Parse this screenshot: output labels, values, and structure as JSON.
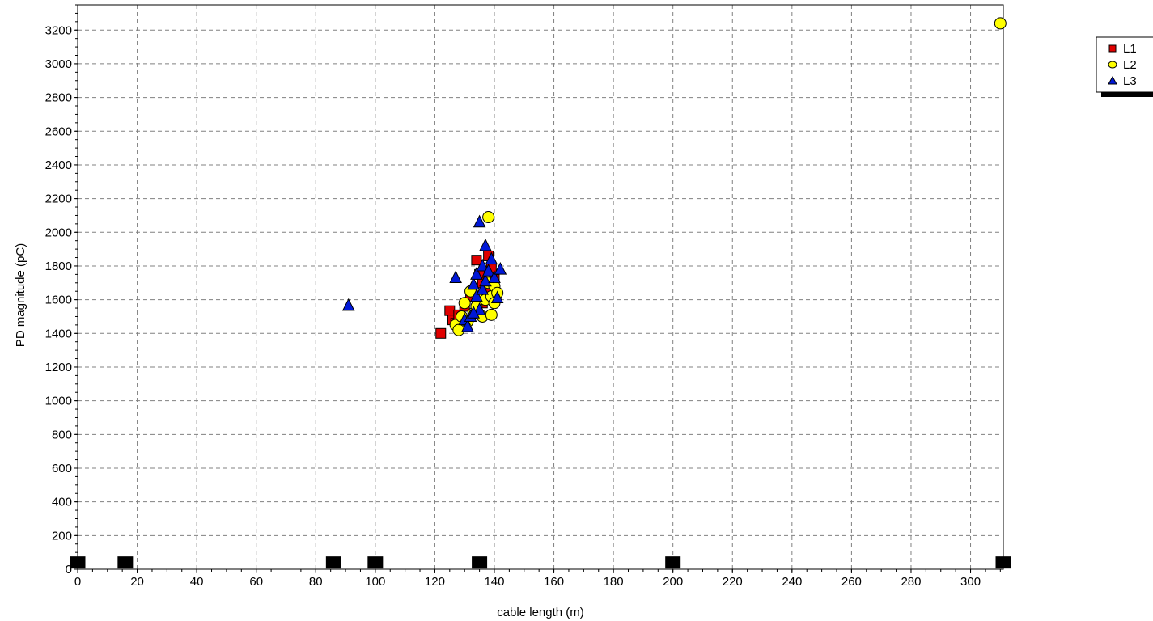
{
  "chart_data": {
    "type": "scatter",
    "xlabel": "cable length (m)",
    "ylabel": "PD magnitude (pC)",
    "xlim": [
      0,
      311
    ],
    "ylim": [
      0,
      3350
    ],
    "x_ticks": [
      0,
      20,
      40,
      60,
      80,
      100,
      120,
      140,
      160,
      180,
      200,
      220,
      240,
      260,
      280,
      300
    ],
    "y_ticks": [
      0,
      200,
      400,
      600,
      800,
      1000,
      1200,
      1400,
      1600,
      1800,
      2000,
      2200,
      2400,
      2600,
      2800,
      3000,
      3200
    ],
    "grid": true,
    "legend_position": "top-right",
    "series": [
      {
        "name": "L1",
        "marker": "square",
        "color": "#e00000",
        "points": [
          [
            122,
            1400
          ],
          [
            125,
            1535
          ],
          [
            126,
            1480
          ],
          [
            127,
            1460
          ],
          [
            128,
            1510
          ],
          [
            130,
            1560
          ],
          [
            132,
            1620
          ],
          [
            134,
            1835
          ],
          [
            135,
            1750
          ],
          [
            136,
            1700
          ],
          [
            137,
            1650
          ],
          [
            138,
            1860
          ],
          [
            139,
            1790
          ],
          [
            140,
            1720
          ],
          [
            136,
            1580
          ]
        ]
      },
      {
        "name": "L2",
        "marker": "circle",
        "color": "#ffff00",
        "points": [
          [
            127,
            1450
          ],
          [
            128,
            1420
          ],
          [
            129,
            1500
          ],
          [
            130,
            1580
          ],
          [
            131,
            1470
          ],
          [
            132,
            1650
          ],
          [
            133,
            1520
          ],
          [
            134,
            1560
          ],
          [
            135,
            1620
          ],
          [
            136,
            1500
          ],
          [
            137,
            1600
          ],
          [
            138,
            1700
          ],
          [
            139,
            1510
          ],
          [
            139,
            1620
          ],
          [
            140,
            1680
          ],
          [
            140,
            1580
          ],
          [
            141,
            1640
          ],
          [
            138,
            2090
          ],
          [
            310,
            3240
          ]
        ]
      },
      {
        "name": "L3",
        "marker": "triangle",
        "color": "#0018d8",
        "points": [
          [
            91,
            1565
          ],
          [
            127,
            1730
          ],
          [
            130,
            1480
          ],
          [
            131,
            1440
          ],
          [
            132,
            1500
          ],
          [
            133,
            1690
          ],
          [
            134,
            1620
          ],
          [
            134,
            1750
          ],
          [
            135,
            1540
          ],
          [
            135,
            2060
          ],
          [
            136,
            1800
          ],
          [
            136,
            1660
          ],
          [
            137,
            1920
          ],
          [
            137,
            1710
          ],
          [
            138,
            1770
          ],
          [
            139,
            1840
          ],
          [
            140,
            1730
          ],
          [
            141,
            1610
          ],
          [
            142,
            1780
          ],
          [
            133,
            1520
          ]
        ]
      },
      {
        "name": "",
        "marker": "rect",
        "color": "#000000",
        "points": [
          [
            0,
            40
          ],
          [
            16,
            40
          ],
          [
            86,
            40
          ],
          [
            100,
            40
          ],
          [
            135,
            40
          ],
          [
            200,
            40
          ],
          [
            311,
            40
          ]
        ]
      }
    ]
  }
}
